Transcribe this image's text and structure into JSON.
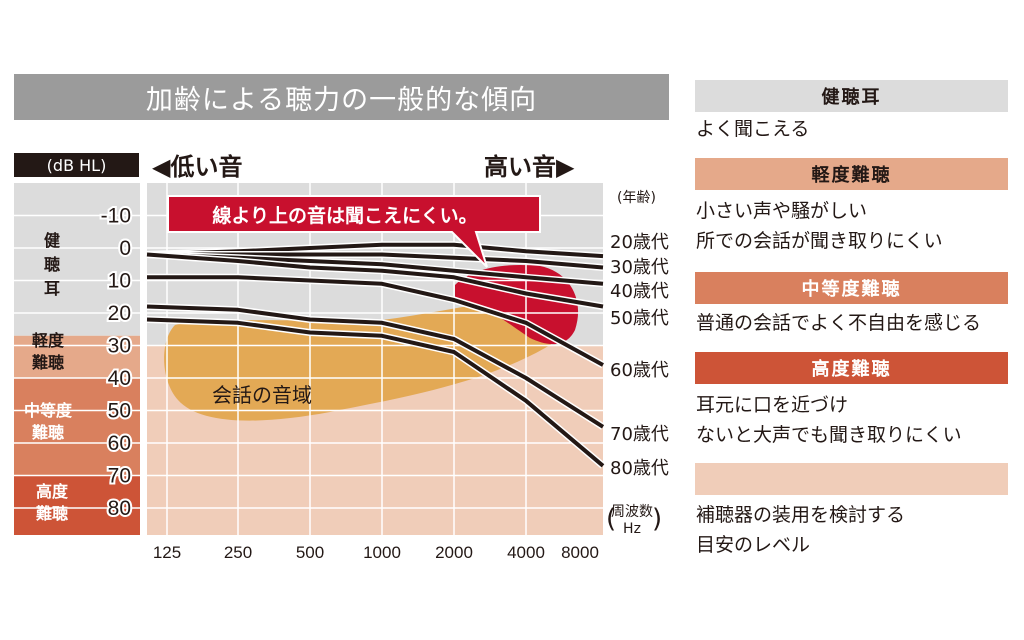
{
  "title": "加齢による聴力の一般的な傾向",
  "unit_label": "(dB HL)",
  "low_sound_label": "◀低い音",
  "high_sound_label": "高い音▶",
  "age_header": "(年齢)",
  "freq_unit_label": {
    "line1": "周波数",
    "line2": "Hz"
  },
  "callout": "線より上の音は聞こえにくい。",
  "speech_area_label": "会話の音域",
  "colors": {
    "normal": "#dcdcdc",
    "mild": "#e5a98a",
    "moderate": "#d9805e",
    "severe": "#cd5437",
    "hearing_aid": "#f0cdb9",
    "speech_area": "#e3a955",
    "callout_red": "#c8102e",
    "line": "#231815",
    "title_bg": "#9b9b9b"
  },
  "categories": [
    {
      "id": "normal",
      "label_chars": [
        "健",
        "聴",
        "耳"
      ],
      "range": [
        -20,
        27
      ]
    },
    {
      "id": "mild",
      "label_lines": [
        "軽度",
        "難聴"
      ],
      "range": [
        27,
        40
      ]
    },
    {
      "id": "moderate",
      "label_lines": [
        "中等度",
        "難聴"
      ],
      "range": [
        40,
        70
      ]
    },
    {
      "id": "severe",
      "label_lines": [
        "高度",
        "難聴"
      ],
      "range": [
        70,
        90
      ]
    }
  ],
  "legend": [
    {
      "id": "normal",
      "heading": "健聴耳",
      "lines": [
        "よく聞こえる"
      ]
    },
    {
      "id": "mild",
      "heading": "軽度難聴",
      "lines": [
        "小さい声や騒がしい",
        "所での会話が聞き取りにくい"
      ]
    },
    {
      "id": "moderate",
      "heading": "中等度難聴",
      "lines": [
        "普通の会話でよく不自由を感じる"
      ]
    },
    {
      "id": "severe",
      "heading": "高度難聴",
      "lines": [
        "耳元に口を近づけ",
        "ないと大声でも聞き取りにくい"
      ]
    },
    {
      "id": "hearing_aid",
      "heading": "",
      "lines": [
        "補聴器の装用を検討する",
        "目安のレベル"
      ]
    }
  ],
  "chart_data": {
    "type": "line",
    "title": "加齢による聴力の一般的な傾向",
    "xlabel": "周波数 Hz",
    "ylabel": "dB HL",
    "x": [
      125,
      250,
      500,
      1000,
      2000,
      4000,
      8000
    ],
    "x_tick_labels": [
      "125",
      "250",
      "500",
      "1000",
      "2000",
      "4000",
      "8000"
    ],
    "y_ticks": [
      -10,
      0,
      10,
      20,
      30,
      40,
      50,
      60,
      70,
      80
    ],
    "y_tick_labels": [
      "-10",
      "0",
      "10",
      "20",
      "30",
      "40",
      "50",
      "60",
      "70",
      "80"
    ],
    "ylim": [
      -20,
      90
    ],
    "y_inverted": true,
    "grid": true,
    "series": [
      {
        "name": "20歳代",
        "values": [
          2,
          1,
          0,
          -1,
          -1,
          1,
          2.5
        ]
      },
      {
        "name": "30歳代",
        "values": [
          2,
          2,
          2,
          2,
          3,
          4,
          6
        ]
      },
      {
        "name": "40歳代",
        "values": [
          2,
          3,
          4,
          5,
          7,
          9,
          11
        ]
      },
      {
        "name": "50歳代",
        "values": [
          2,
          4,
          6,
          7,
          9,
          14,
          18
        ]
      },
      {
        "name": "60歳代",
        "values": [
          9,
          9,
          10,
          11,
          16,
          23,
          36
        ]
      },
      {
        "name": "70歳代",
        "values": [
          18,
          19,
          22,
          23,
          28,
          40,
          55
        ]
      },
      {
        "name": "80歳代",
        "values": [
          22,
          23,
          26,
          27,
          32,
          47,
          67
        ]
      }
    ]
  }
}
